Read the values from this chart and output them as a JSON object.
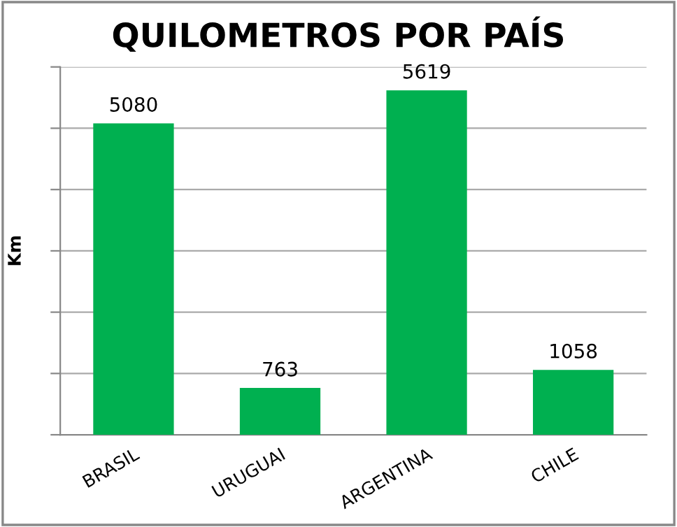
{
  "chart_data": {
    "type": "bar",
    "title": "QUILOMETROS POR PAÍS",
    "ylabel": "Km",
    "categories": [
      "BRASIL",
      "URUGUAI",
      "ARGENTINA",
      "CHILE"
    ],
    "values": [
      5080,
      763,
      5619,
      1058
    ],
    "color": "#00b050",
    "ylim": [
      0,
      6000
    ],
    "yticks": [
      {
        "value": 0,
        "label": null
      },
      {
        "value": 1000,
        "label": null
      },
      {
        "value": 2000,
        "label": null
      },
      {
        "value": 3000,
        "label": null
      },
      {
        "value": 4000,
        "label": null
      },
      {
        "value": 5000,
        "label": null
      },
      {
        "value": 6000,
        "label": null
      }
    ],
    "tick_labels": "x",
    "grid": "y",
    "data_labels": true,
    "legend": false
  }
}
